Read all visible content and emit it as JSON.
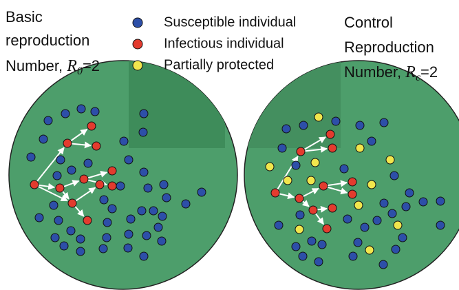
{
  "left_label": {
    "lines": [
      "Basic",
      "reproduction",
      "Number, "
    ],
    "symbol": "R",
    "subscript": "0",
    "suffix": "=2"
  },
  "legend": [
    {
      "label": "Susceptible individual"
    },
    {
      "label": "Infectious individual"
    },
    {
      "label": "Partially protected"
    }
  ],
  "right_label": {
    "lines": [
      "Control",
      "Reproduction",
      "Number, "
    ],
    "symbol": "R",
    "subscript": "c",
    "suffix": "=2"
  }
}
